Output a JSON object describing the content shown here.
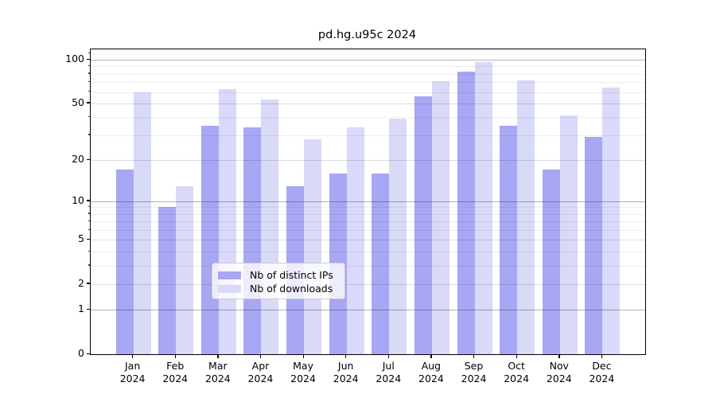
{
  "chart_data": {
    "type": "bar",
    "title": "pd.hg.u95c 2024",
    "categories": [
      "Jan 2024",
      "Feb 2024",
      "Mar 2024",
      "Apr 2024",
      "May 2024",
      "Jun 2024",
      "Jul 2024",
      "Aug 2024",
      "Sep 2024",
      "Oct 2024",
      "Nov 2024",
      "Dec 2024"
    ],
    "series": [
      {
        "name": "Nb of distinct IPs",
        "color": "#a7a7f3",
        "values": [
          17,
          9,
          35,
          34,
          13,
          16,
          16,
          56,
          83,
          35,
          17,
          29
        ]
      },
      {
        "name": "Nb of downloads",
        "color": "#d9d9f8",
        "values": [
          60,
          13,
          63,
          53,
          28,
          34,
          39,
          71,
          96,
          72,
          41,
          64
        ]
      }
    ],
    "yscale": "log1p",
    "ylim": [
      0,
      118
    ],
    "yticks": [
      0,
      1,
      2,
      5,
      10,
      20,
      50,
      100
    ],
    "yticks_minor": [
      3,
      4,
      6,
      7,
      8,
      9,
      30,
      40,
      60,
      70,
      80,
      90,
      110
    ],
    "grid": true,
    "legend_position": "lower center"
  }
}
